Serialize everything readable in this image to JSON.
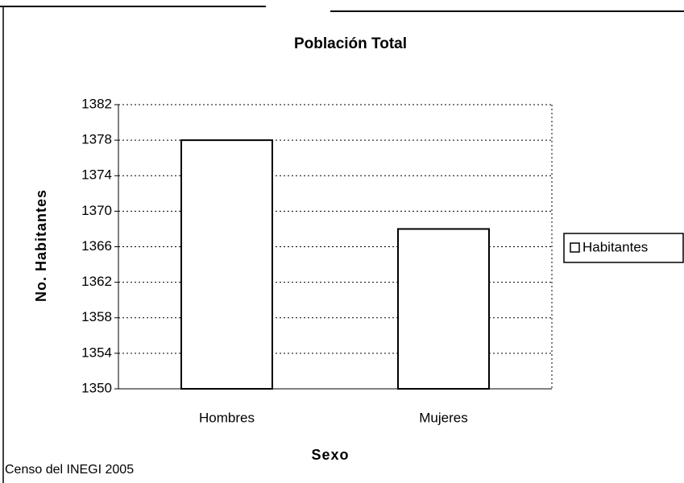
{
  "chart_data": {
    "type": "bar",
    "title": "Población Total",
    "x_label": "Sexo",
    "y_label": "No. Habitantes",
    "annotation": "Censo del INEGI 2005",
    "categories": [
      "Hombres",
      "Mujeres"
    ],
    "series": [
      {
        "name": "Habitantes",
        "color": "#ffffff",
        "values": [
          1378,
          1368
        ]
      }
    ],
    "ylim": [
      1350,
      1382
    ],
    "yticks": [
      1350,
      1354,
      1358,
      1362,
      1366,
      1370,
      1374,
      1378,
      1382
    ],
    "grid": true,
    "legend": "right"
  }
}
